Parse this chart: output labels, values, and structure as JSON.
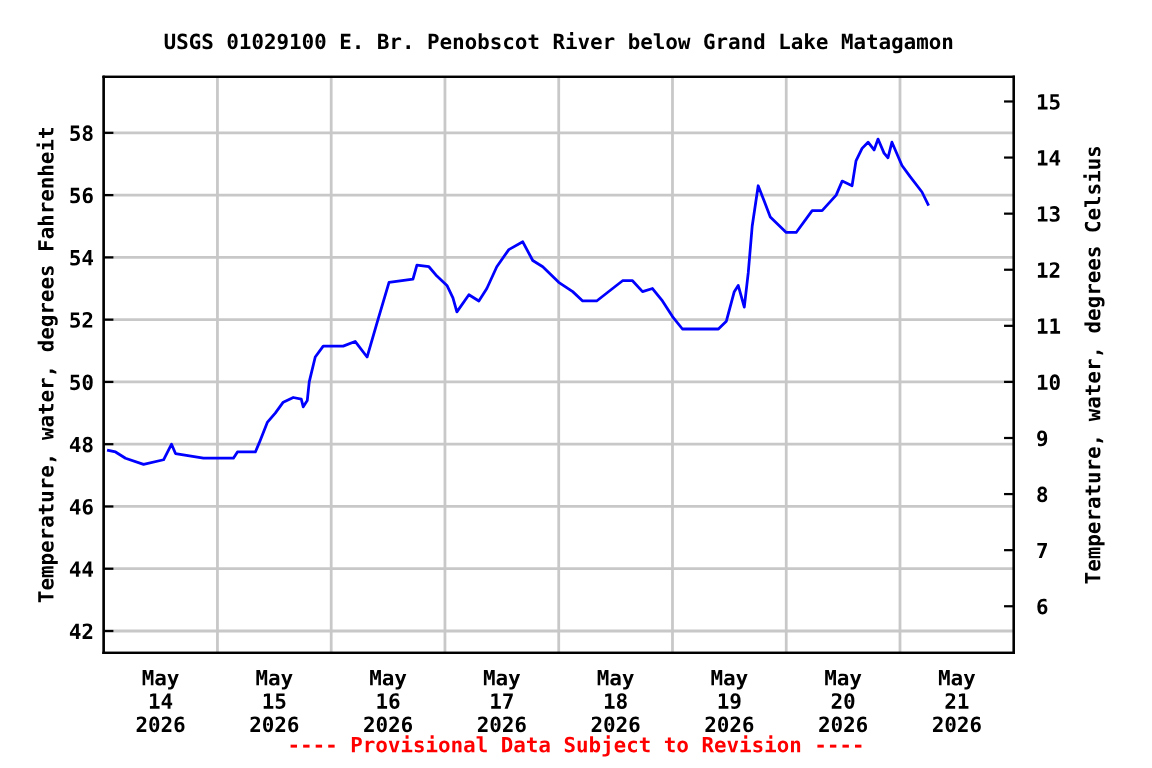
{
  "chart_data": {
    "type": "line",
    "title": "USGS 01029100 E. Br. Penobscot River below Grand Lake Matagamon",
    "ylabel": "Temperature, water, degrees Fahrenheit",
    "y2label": "Temperature, water, degrees Celsius",
    "annotations": [
      "---- Provisional Data Subject to Revision ----"
    ],
    "series": [
      {
        "color": "#0000ff",
        "x": [
          "2026-05-14T01:00",
          "2026-05-14T02:30",
          "2026-05-14T04:36",
          "2026-05-14T08:25",
          "2026-05-14T12:38",
          "2026-05-14T14:19",
          "2026-05-14T15:09",
          "2026-05-14T21:03",
          "2026-05-15T03:22",
          "2026-05-15T04:13",
          "2026-05-15T08:00",
          "2026-05-15T08:50",
          "2026-05-15T10:31",
          "2026-05-15T12:12",
          "2026-05-15T13:53",
          "2026-05-15T16:00",
          "2026-05-15T17:41",
          "2026-05-15T18:06",
          "2026-05-15T18:57",
          "2026-05-15T19:22",
          "2026-05-15T20:38",
          "2026-05-15T22:19",
          "2026-05-16T02:32",
          "2026-05-16T05:03",
          "2026-05-16T07:34",
          "2026-05-16T09:40",
          "2026-05-16T12:12",
          "2026-05-16T17:15",
          "2026-05-16T18:05",
          "2026-05-16T20:37",
          "2026-05-16T22:18",
          "2026-05-17T00:25",
          "2026-05-17T01:41",
          "2026-05-17T02:31",
          "2026-05-17T05:03",
          "2026-05-17T07:09",
          "2026-05-17T08:50",
          "2026-05-17T10:56",
          "2026-05-17T13:28",
          "2026-05-17T16:25",
          "2026-05-17T18:31",
          "2026-05-17T20:38",
          "2026-05-18T00:00",
          "2026-05-18T02:57",
          "2026-05-18T05:03",
          "2026-05-18T08:00",
          "2026-05-18T11:22",
          "2026-05-18T13:28",
          "2026-05-18T15:34",
          "2026-05-18T17:41",
          "2026-05-18T19:47",
          "2026-05-18T21:53",
          "2026-05-19T00:00",
          "2026-05-19T02:06",
          "2026-05-19T09:41",
          "2026-05-19T11:22",
          "2026-05-19T13:02",
          "2026-05-19T13:52",
          "2026-05-19T15:09",
          "2026-05-19T15:59",
          "2026-05-19T16:49",
          "2026-05-19T18:05",
          "2026-05-19T19:22",
          "2026-05-19T20:38",
          "2026-05-20T00:00",
          "2026-05-20T02:06",
          "2026-05-20T05:28",
          "2026-05-20T07:34",
          "2026-05-20T10:32",
          "2026-05-20T11:48",
          "2026-05-20T13:53",
          "2026-05-20T14:43",
          "2026-05-20T16:00",
          "2026-05-20T17:16",
          "2026-05-20T18:32",
          "2026-05-20T19:22",
          "2026-05-20T20:38",
          "2026-05-20T21:28",
          "2026-05-20T22:18",
          "2026-05-21T00:25",
          "2026-05-21T02:06",
          "2026-05-21T04:38",
          "2026-05-21T05:55"
        ],
        "values": [
          47.8,
          47.75,
          47.55,
          47.35,
          47.5,
          48.0,
          47.7,
          47.55,
          47.55,
          47.75,
          47.75,
          48.05,
          48.7,
          49.0,
          49.35,
          49.5,
          49.45,
          49.2,
          49.4,
          50.0,
          50.8,
          51.15,
          51.15,
          51.3,
          50.8,
          51.9,
          53.2,
          53.3,
          53.75,
          53.7,
          53.4,
          53.1,
          52.7,
          52.25,
          52.8,
          52.6,
          53.0,
          53.7,
          54.25,
          54.5,
          53.9,
          53.7,
          53.2,
          52.9,
          52.6,
          52.6,
          53.0,
          53.25,
          53.25,
          52.9,
          53.0,
          52.6,
          52.1,
          51.7,
          51.7,
          51.95,
          52.9,
          53.1,
          52.4,
          53.5,
          55.0,
          56.3,
          55.8,
          55.3,
          54.8,
          54.8,
          55.5,
          55.5,
          56.0,
          56.45,
          56.3,
          57.1,
          57.5,
          57.7,
          57.45,
          57.8,
          57.35,
          57.2,
          57.7,
          56.95,
          56.6,
          56.1,
          55.7
        ]
      }
    ],
    "xlim": [
      "2026-05-14",
      "2026-05-22"
    ],
    "xticks": [
      {
        "value": "2026-05-14T12:00",
        "label": "May\n14\n2026"
      },
      {
        "value": "2026-05-15T12:00",
        "label": "May\n15\n2026"
      },
      {
        "value": "2026-05-16T12:00",
        "label": "May\n16\n2026"
      },
      {
        "value": "2026-05-17T12:00",
        "label": "May\n17\n2026"
      },
      {
        "value": "2026-05-18T12:00",
        "label": "May\n18\n2026"
      },
      {
        "value": "2026-05-19T12:00",
        "label": "May\n19\n2026"
      },
      {
        "value": "2026-05-20T12:00",
        "label": "May\n20\n2026"
      },
      {
        "value": "2026-05-21T12:00",
        "label": "May\n21\n2026"
      },
      {
        "value": "2026-05-15",
        "label": null
      },
      {
        "value": "2026-05-16",
        "label": null
      },
      {
        "value": "2026-05-17",
        "label": null
      },
      {
        "value": "2026-05-18",
        "label": null
      },
      {
        "value": "2026-05-19",
        "label": null
      },
      {
        "value": "2026-05-20",
        "label": null
      },
      {
        "value": "2026-05-21",
        "label": null
      }
    ],
    "ylim": [
      41.3,
      59.8
    ],
    "yticks": [
      42,
      44,
      46,
      48,
      50,
      52,
      54,
      56,
      58
    ],
    "y2lim": [
      5.17,
      15.44
    ],
    "y2ticks": [
      6,
      7,
      8,
      9,
      10,
      11,
      12,
      13,
      14,
      15
    ],
    "grid": true,
    "legend": false
  }
}
